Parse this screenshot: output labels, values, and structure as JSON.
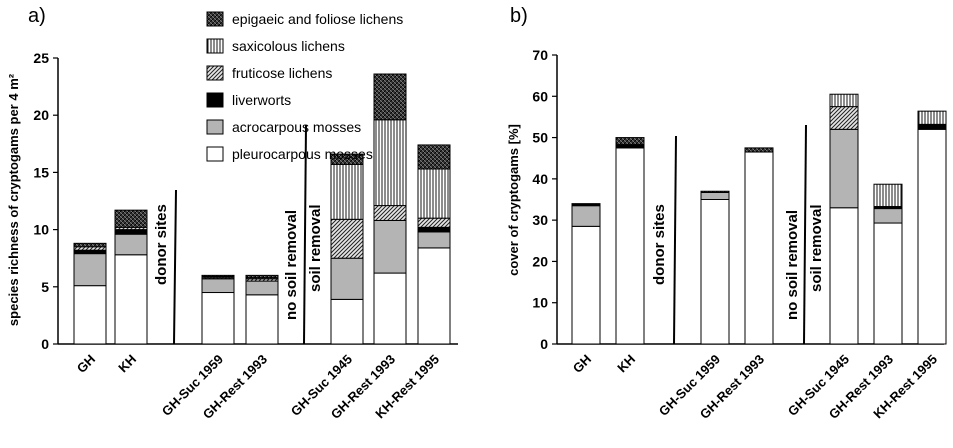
{
  "panels": [
    {
      "id": "a",
      "letter": "a)",
      "ylabel": "species richness of cryptogams per 4 m²",
      "ylim": [
        0,
        25
      ],
      "yticks": [
        0,
        5,
        10,
        15,
        20,
        25
      ]
    },
    {
      "id": "b",
      "letter": "b)",
      "ylabel": "cover of cryptogams [%]",
      "ylim": [
        0,
        70
      ],
      "yticks": [
        0,
        10,
        20,
        30,
        40,
        50,
        60,
        70
      ]
    }
  ],
  "legend": [
    {
      "key": "epigaeic",
      "label": "epigaeic and foliose lichens",
      "pattern": "crosshatch"
    },
    {
      "key": "saxicolous",
      "label": "saxicolous lichens",
      "pattern": "vertical-lines"
    },
    {
      "key": "fruticose",
      "label": "fruticose lichens",
      "pattern": "diagonal-lines"
    },
    {
      "key": "liverworts",
      "label": "liverworts",
      "pattern": "solid-black"
    },
    {
      "key": "acrocarpous",
      "label": "acrocarpous mosses",
      "pattern": "gray"
    },
    {
      "key": "pleurocarpous",
      "label": "pleurocarpous mosses",
      "pattern": "white"
    }
  ],
  "regions": [
    "donor sites",
    "no soil removal",
    "soil removal"
  ],
  "chart_data": [
    {
      "type": "bar",
      "stacked": true,
      "categories": [
        "GH",
        "KH",
        "GH-Suc 1959",
        "GH-Rest 1993",
        "GH-Suc 1945",
        "GH-Rest 1993",
        "KH-Rest 1995"
      ],
      "ylabel": "species richness of cryptogams per 4 m²",
      "ylim": [
        0,
        25
      ],
      "series": [
        {
          "name": "pleurocarpous mosses",
          "values": [
            5.1,
            7.8,
            4.5,
            4.3,
            3.9,
            6.2,
            8.4
          ]
        },
        {
          "name": "acrocarpous mosses",
          "values": [
            2.8,
            1.8,
            1.2,
            1.2,
            3.6,
            4.6,
            1.4
          ]
        },
        {
          "name": "liverworts",
          "values": [
            0.3,
            0.4,
            0.0,
            0.0,
            0.0,
            0.0,
            0.4
          ]
        },
        {
          "name": "fruticose lichens",
          "values": [
            0.3,
            0.2,
            0.1,
            0.2,
            3.4,
            1.3,
            0.8
          ]
        },
        {
          "name": "saxicolous lichens",
          "values": [
            0.0,
            0.0,
            0.1,
            0.1,
            4.8,
            7.5,
            4.3
          ]
        },
        {
          "name": "epigaeic and foliose lichens",
          "values": [
            0.3,
            1.5,
            0.1,
            0.2,
            0.9,
            4.0,
            2.1
          ]
        }
      ]
    },
    {
      "type": "bar",
      "stacked": true,
      "categories": [
        "GH",
        "KH",
        "GH-Suc 1959",
        "GH-Rest 1993",
        "GH-Suc 1945",
        "GH-Rest 1993",
        "KH-Rest 1995"
      ],
      "ylabel": "cover of cryptogams [%]",
      "ylim": [
        0,
        70
      ],
      "series": [
        {
          "name": "pleurocarpous mosses",
          "values": [
            28.5,
            47.5,
            35.0,
            46.5,
            33.0,
            29.3,
            52.0
          ]
        },
        {
          "name": "acrocarpous mosses",
          "values": [
            5.0,
            0.0,
            1.7,
            0.0,
            19.0,
            3.5,
            0.0
          ]
        },
        {
          "name": "liverworts",
          "values": [
            0.3,
            0.8,
            0.0,
            0.0,
            0.0,
            0.5,
            1.2
          ]
        },
        {
          "name": "fruticose lichens",
          "values": [
            0.0,
            0.0,
            0.0,
            0.0,
            5.5,
            0.0,
            0.0
          ]
        },
        {
          "name": "saxicolous lichens",
          "values": [
            0.0,
            0.0,
            0.0,
            0.0,
            3.0,
            5.4,
            3.2
          ]
        },
        {
          "name": "epigaeic and foliose lichens",
          "values": [
            0.2,
            1.7,
            0.3,
            1.0,
            0.0,
            0.0,
            0.0
          ]
        }
      ]
    }
  ]
}
